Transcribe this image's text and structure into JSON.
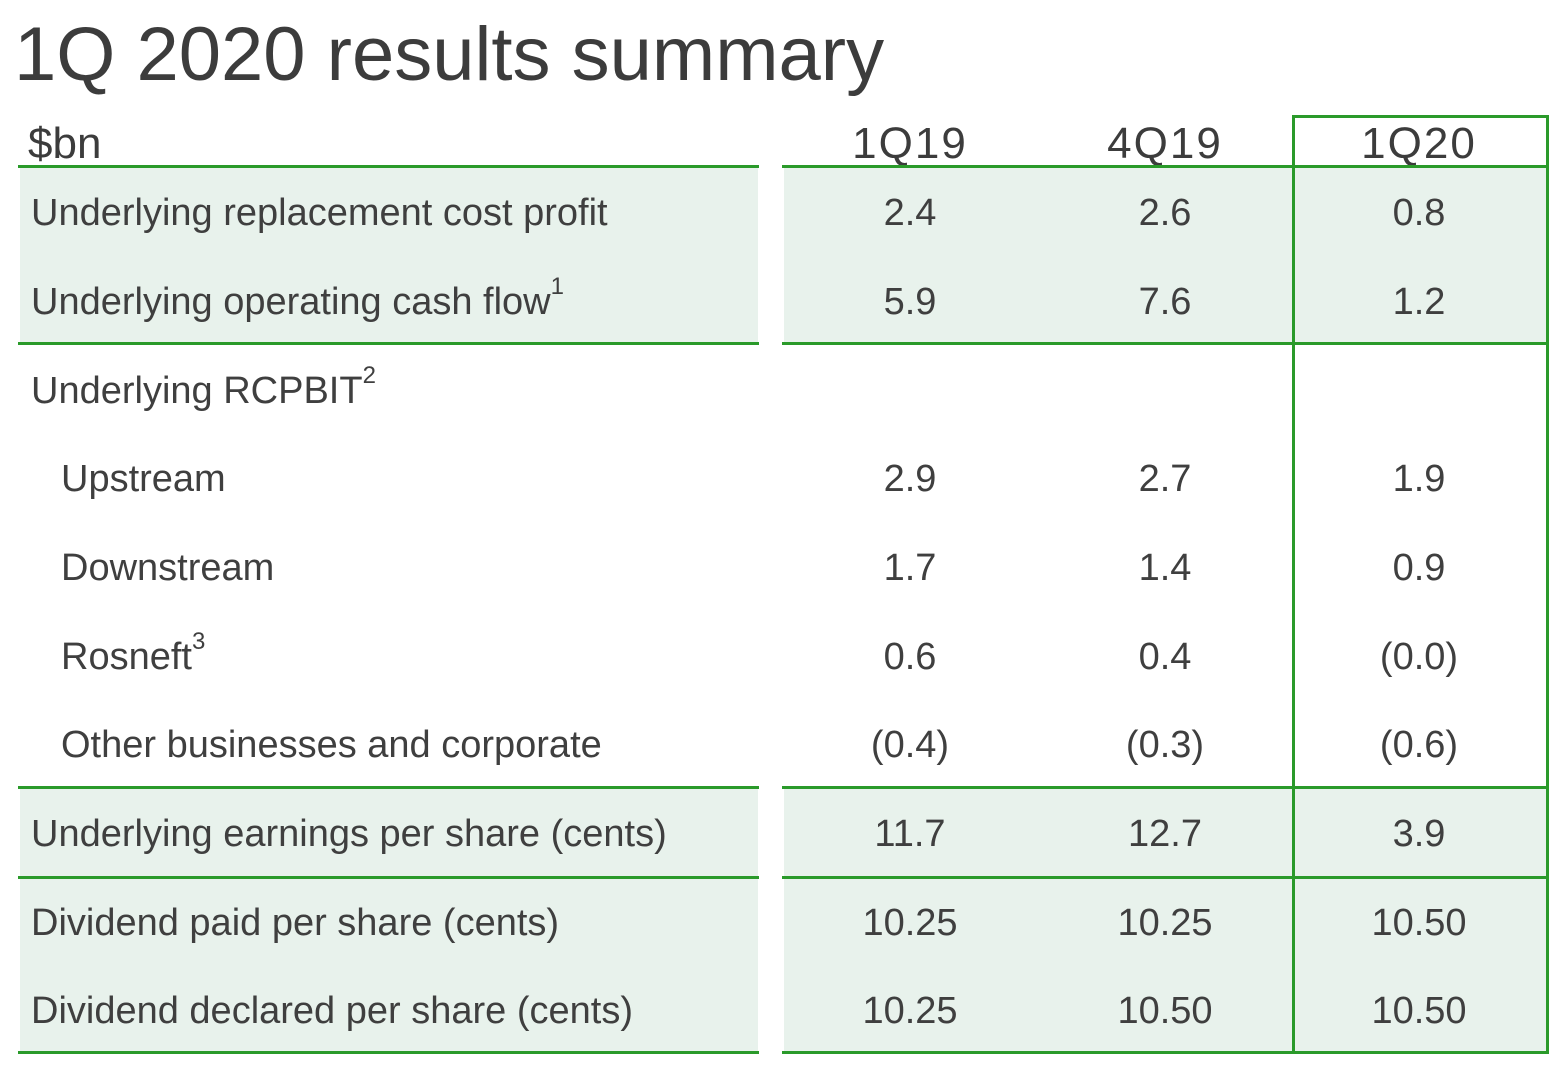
{
  "title": "1Q 2020 results summary",
  "table": {
    "unit_label": "$bn",
    "columns": [
      "1Q19",
      "4Q19",
      "1Q20"
    ],
    "rows": [
      {
        "label": "Underlying replacement cost profit",
        "note": "",
        "values": [
          "2.4",
          "2.6",
          "0.8"
        ]
      },
      {
        "label": "Underlying operating cash flow",
        "note": "1",
        "values": [
          "5.9",
          "7.6",
          "1.2"
        ]
      },
      {
        "label": "Underlying RCPBIT",
        "note": "2",
        "values": [
          "",
          "",
          ""
        ]
      },
      {
        "label": "Upstream",
        "note": "",
        "values": [
          "2.9",
          "2.7",
          "1.9"
        ]
      },
      {
        "label": "Downstream",
        "note": "",
        "values": [
          "1.7",
          "1.4",
          "0.9"
        ]
      },
      {
        "label": "Rosneft",
        "note": "3",
        "values": [
          "0.6",
          "0.4",
          "(0.0)"
        ]
      },
      {
        "label": "Other businesses and corporate",
        "note": "",
        "values": [
          "(0.4)",
          "(0.3)",
          "(0.6)"
        ]
      },
      {
        "label": "Underlying earnings per share (cents)",
        "note": "",
        "values": [
          "11.7",
          "12.7",
          "3.9"
        ]
      },
      {
        "label": "Dividend paid per share (cents)",
        "note": "",
        "values": [
          "10.25",
          "10.25",
          "10.50"
        ]
      },
      {
        "label": "Dividend declared per share (cents)",
        "note": "",
        "values": [
          "10.25",
          "10.50",
          "10.50"
        ]
      }
    ]
  },
  "colors": {
    "accent_green": "#2a9a2a",
    "band_fill": "#e8f2ec",
    "text": "#3f3f3f"
  }
}
